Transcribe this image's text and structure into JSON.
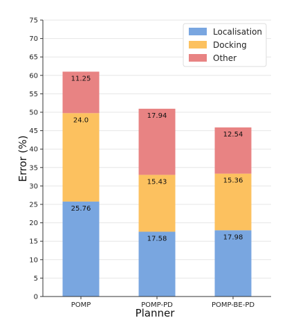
{
  "chart_data": {
    "type": "bar",
    "stacked": true,
    "categories": [
      "POMP",
      "POMP-PD",
      "POMP-BE-PD"
    ],
    "series": [
      {
        "name": "Localisation",
        "color": "#79a6e0",
        "values": [
          25.76,
          17.58,
          17.98
        ]
      },
      {
        "name": "Docking",
        "color": "#fcc15f",
        "values": [
          24.0,
          15.43,
          15.36
        ]
      },
      {
        "name": "Other",
        "color": "#e88383",
        "values": [
          11.25,
          17.94,
          12.54
        ]
      }
    ],
    "data_labels": [
      [
        "25.76",
        "17.58",
        "17.98"
      ],
      [
        "24.0",
        "15.43",
        "15.36"
      ],
      [
        "11.25",
        "17.94",
        "12.54"
      ]
    ],
    "title": "",
    "xlabel": "Planner",
    "ylabel": "Error (%)",
    "ylim": [
      0,
      75
    ],
    "yticks": [
      "0",
      "5",
      "10",
      "15",
      "20",
      "25",
      "30",
      "35",
      "40",
      "45",
      "50",
      "55",
      "60",
      "65",
      "70",
      "75"
    ],
    "grid": true,
    "legend_position": "top-right"
  }
}
